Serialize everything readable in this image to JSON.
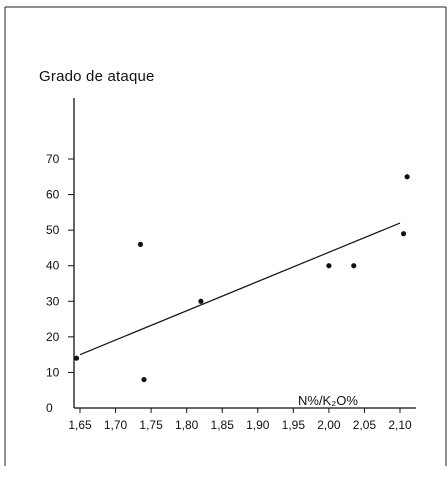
{
  "chart_data": {
    "type": "scatter",
    "title": "",
    "ylabel": "Grado de ataque",
    "xlabel": "N% / K2O%",
    "xlabel_display": "N%/K₂O%",
    "x_ticks": [
      "1,65",
      "1,70",
      "1,75",
      "1,80",
      "1,85",
      "1,90",
      "1,95",
      "2,00",
      "2,05",
      "2,10"
    ],
    "x_tick_values": [
      1.65,
      1.7,
      1.75,
      1.8,
      1.85,
      1.9,
      1.95,
      2.0,
      2.05,
      2.1
    ],
    "y_ticks": [
      "0",
      "10",
      "20",
      "30",
      "40",
      "50",
      "60",
      "70"
    ],
    "y_tick_values": [
      0,
      10,
      20,
      30,
      40,
      50,
      60,
      70
    ],
    "xlim": [
      1.63,
      2.125
    ],
    "ylim": [
      0,
      70
    ],
    "grid": false,
    "points": [
      {
        "x": 1.645,
        "y": 14
      },
      {
        "x": 1.735,
        "y": 46
      },
      {
        "x": 1.74,
        "y": 8
      },
      {
        "x": 1.82,
        "y": 30
      },
      {
        "x": 2.0,
        "y": 40
      },
      {
        "x": 2.035,
        "y": 40
      },
      {
        "x": 2.105,
        "y": 49
      },
      {
        "x": 2.11,
        "y": 65
      }
    ],
    "regression_line": {
      "x1": 1.65,
      "y1": 15,
      "x2": 2.1,
      "y2": 52
    },
    "colors": {
      "ink": "#111111",
      "background": "#ffffff"
    }
  }
}
